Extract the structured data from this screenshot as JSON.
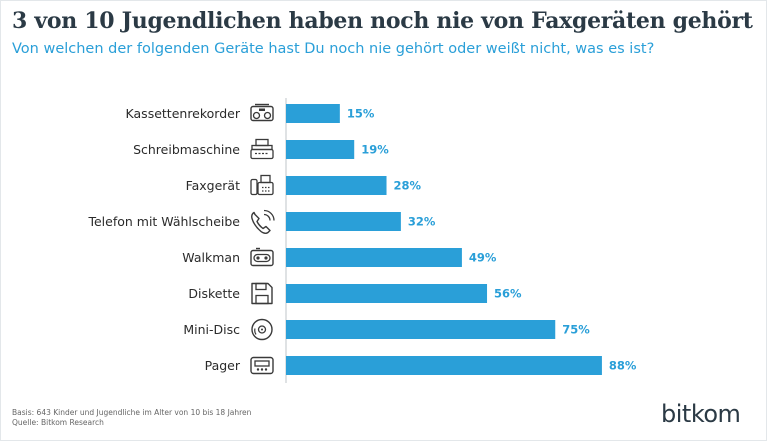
{
  "chart_data": {
    "type": "bar",
    "orientation": "horizontal",
    "title": "3 von 10 Jugendlichen haben noch nie von Faxgeräten gehört",
    "subtitle": "Von welchen der folgenden Geräte hast Du noch nie gehört oder weißt nicht, was es ist?",
    "categories": [
      "Kassettenrekorder",
      "Schreibmaschine",
      "Faxgerät",
      "Telefon mit Wählscheibe",
      "Walkman",
      "Diskette",
      "Mini-Disc",
      "Pager"
    ],
    "values": [
      15,
      19,
      28,
      32,
      49,
      56,
      75,
      88
    ],
    "value_labels": [
      "15%",
      "19%",
      "28%",
      "32%",
      "49%",
      "56%",
      "75%",
      "88%"
    ],
    "icons": [
      "cassette-recorder-icon",
      "typewriter-icon",
      "fax-icon",
      "rotary-phone-icon",
      "walkman-icon",
      "floppy-disk-icon",
      "minidisc-icon",
      "pager-icon"
    ],
    "unit": "%",
    "xlim": [
      0,
      100
    ],
    "bar_color": "#2a9fd8"
  },
  "footer": {
    "basis": "Basis: 643 Kinder und Jugendliche im Alter von 10 bis 18 Jahren",
    "source": "Quelle: Bitkom Research"
  },
  "logo": "bitkom",
  "colors": {
    "title": "#2b3a45",
    "accent": "#2a9fd8",
    "text": "#2b2b2b"
  }
}
